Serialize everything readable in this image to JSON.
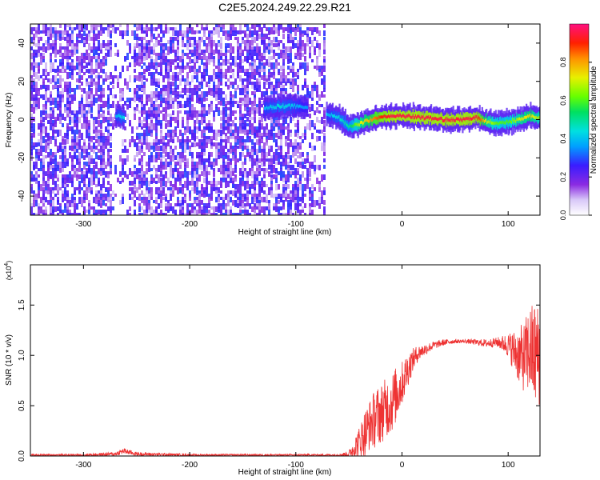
{
  "figure_title": "C2E5.2024.249.22.29.R21",
  "chart_data": [
    {
      "type": "heatmap",
      "xlabel": "Height of straight line (km)",
      "ylabel": "Frequency (Hz)",
      "xlim": [
        -350,
        130
      ],
      "ylim": [
        -50,
        50
      ],
      "x_ticks": [
        -300,
        -200,
        -100,
        0,
        100
      ],
      "x_tick_labels": [
        "-300",
        "-200",
        "-100",
        "0",
        "100"
      ],
      "y_ticks": [
        -40,
        -20,
        0,
        20,
        40
      ],
      "y_tick_labels": [
        "-40",
        "-20",
        "0",
        "20",
        "40"
      ],
      "colorbar": {
        "label": "Normalized spectral amplitude",
        "range": [
          0,
          1
        ],
        "ticks": [
          0,
          0.2,
          0.4,
          0.6,
          0.8
        ],
        "tick_labels": [
          "0.0",
          "0.2",
          "0.4",
          "0.6",
          "0.8"
        ],
        "colormap": "rainbow (white-violet-blue-cyan-green-yellow-red-magenta)"
      },
      "noise_region_x": [
        -350,
        -72
      ],
      "empty_region_x": [
        -72,
        130
      ],
      "signal_track": {
        "x": [
          -270,
          -262,
          -130,
          -115,
          -100,
          -90,
          -70,
          -60,
          -50,
          -40,
          -30,
          -20,
          -10,
          0,
          20,
          40,
          60,
          70,
          80,
          90,
          100,
          110,
          120,
          130
        ],
        "freq": [
          2,
          1,
          6,
          7,
          7,
          6,
          3,
          1,
          -4,
          -2,
          0,
          1,
          2,
          2,
          1,
          0,
          0,
          1,
          -1,
          -2,
          -1,
          0,
          2,
          1
        ],
        "amplitude": [
          0.4,
          0.45,
          0.4,
          0.45,
          0.4,
          0.35,
          0.4,
          0.45,
          0.5,
          0.7,
          0.8,
          0.9,
          0.95,
          0.95,
          0.95,
          0.95,
          0.95,
          0.95,
          0.7,
          0.6,
          0.6,
          0.7,
          0.75,
          0.65
        ]
      }
    },
    {
      "type": "line",
      "xlabel": "Height of straight line (km)",
      "ylabel": "SNR (10 * v/v)",
      "y_multiplier_label": "(x10",
      "y_multiplier_exp": "4",
      "xlim": [
        -350,
        130
      ],
      "ylim": [
        0,
        1.9
      ],
      "x_ticks": [
        -300,
        -200,
        -100,
        0,
        100
      ],
      "x_tick_labels": [
        "-300",
        "-200",
        "-100",
        "0",
        "100"
      ],
      "y_ticks": [
        0,
        0.5,
        1.0,
        1.5
      ],
      "y_tick_labels": [
        "0.0",
        "0.5",
        "1.0",
        "1.5"
      ],
      "color": "#ee3333",
      "series": [
        {
          "x": [
            -350,
            -300,
            -270,
            -262,
            -250,
            -200,
            -150,
            -100,
            -60,
            -50,
            -45,
            -40,
            -35,
            -30,
            -25,
            -20,
            -15,
            -10,
            -5,
            0,
            5,
            10,
            15,
            20,
            30,
            40,
            50,
            60,
            70,
            80,
            90,
            95,
            100,
            105,
            110,
            115,
            120,
            125,
            130
          ],
          "y": [
            0.01,
            0.01,
            0.02,
            0.05,
            0.02,
            0.01,
            0.01,
            0.01,
            0.01,
            0.02,
            0.08,
            0.15,
            0.22,
            0.32,
            0.38,
            0.42,
            0.48,
            0.52,
            0.62,
            0.72,
            0.85,
            0.95,
            1.02,
            1.05,
            1.1,
            1.13,
            1.14,
            1.14,
            1.13,
            1.12,
            1.13,
            1.12,
            1.1,
            1.05,
            1.0,
            0.98,
            1.05,
            1.0,
            1.0
          ],
          "spread": [
            0.01,
            0.01,
            0.02,
            0.03,
            0.02,
            0.01,
            0.01,
            0.01,
            0.01,
            0.03,
            0.1,
            0.15,
            0.25,
            0.25,
            0.3,
            0.3,
            0.3,
            0.3,
            0.28,
            0.22,
            0.18,
            0.12,
            0.08,
            0.06,
            0.04,
            0.03,
            0.02,
            0.02,
            0.03,
            0.04,
            0.05,
            0.08,
            0.12,
            0.2,
            0.28,
            0.35,
            0.45,
            0.55,
            0.5
          ]
        }
      ]
    }
  ]
}
